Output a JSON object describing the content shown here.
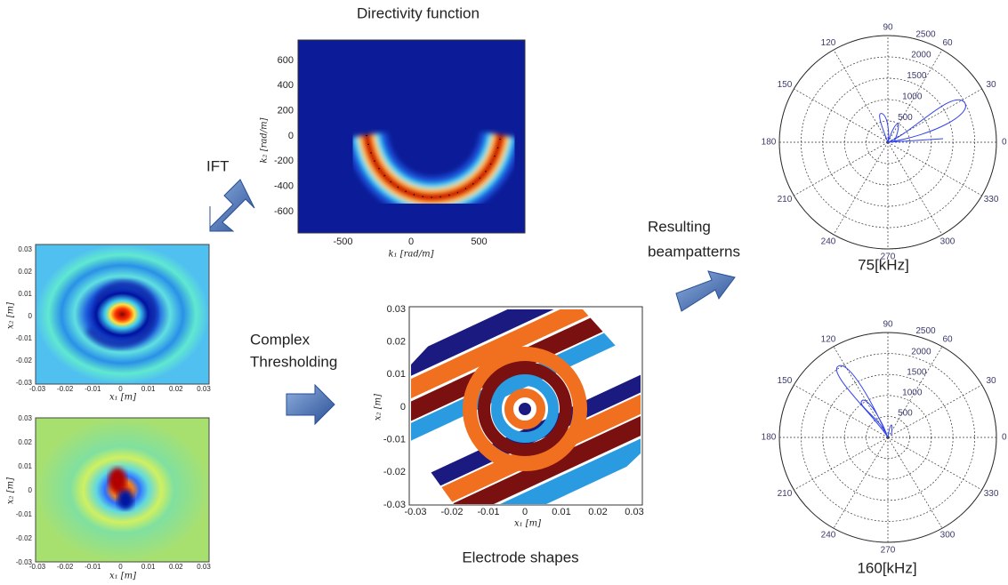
{
  "directivity": {
    "title": "Directivity function",
    "x_label": "k₁ [rad/m]",
    "y_label": "k₂ [rad/m]",
    "xticks": [
      -500,
      0,
      500
    ],
    "yticks": [
      600,
      400,
      200,
      0,
      -200,
      -400,
      -600
    ]
  },
  "ift_label": "IFT",
  "field_plots": [
    {
      "x_label": "x₁ [m]",
      "y_label": "x₂ [m]",
      "xticks": [
        -0.03,
        -0.02,
        -0.01,
        0,
        0.01,
        0.02,
        0.03
      ],
      "yticks": [
        0.03,
        0.02,
        0.01,
        0,
        -0.01,
        -0.02,
        -0.03
      ]
    },
    {
      "x_label": "x₁ [m]",
      "y_label": "x₂ [m]",
      "xticks": [
        -0.03,
        -0.02,
        -0.01,
        0,
        0.01,
        0.02,
        0.03
      ],
      "yticks": [
        0.03,
        0.02,
        0.01,
        0,
        -0.01,
        -0.02,
        -0.03
      ]
    }
  ],
  "thresholding_label": [
    "Complex",
    "Thresholding"
  ],
  "electrode": {
    "caption": "Electrode shapes",
    "x_label": "x₁ [m]",
    "y_label": "x₂ [m]",
    "xticks": [
      -0.03,
      -0.02,
      -0.01,
      0,
      0.01,
      0.02,
      0.03
    ],
    "yticks": [
      0.03,
      0.02,
      0.01,
      0,
      -0.01,
      -0.02,
      -0.03
    ]
  },
  "beampattern_label": [
    "Resulting",
    "beampatterns"
  ],
  "beampatterns": [
    {
      "caption": "75[kHz]",
      "angle_ticks": [
        90,
        60,
        30,
        0,
        330,
        300,
        270,
        240,
        210,
        180,
        150,
        120
      ],
      "radial_ticks": [
        500,
        1000,
        1500,
        2000,
        2500
      ]
    },
    {
      "caption": "160[kHz]",
      "angle_ticks": [
        90,
        60,
        30,
        0,
        330,
        300,
        270,
        240,
        210,
        180,
        150,
        120
      ],
      "radial_ticks": [
        500,
        1000,
        1500,
        2000,
        2500
      ]
    }
  ]
}
